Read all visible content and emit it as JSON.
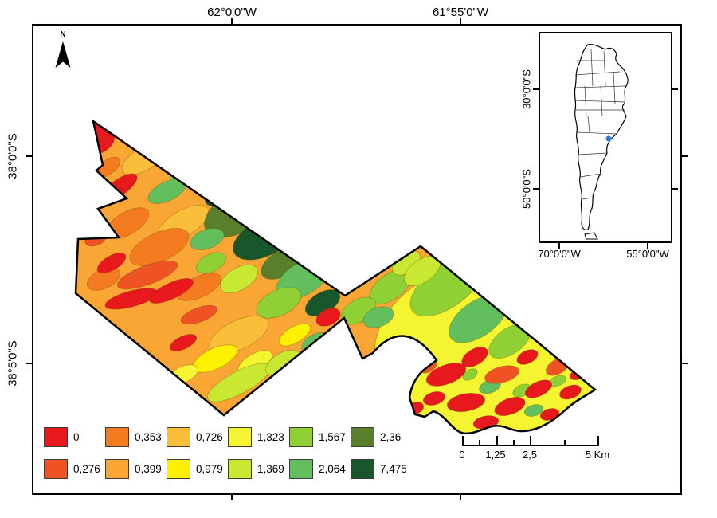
{
  "frame": {
    "top_labels": [
      {
        "text": "62°0'0\"W"
      },
      {
        "text": "61°55'0\"W"
      }
    ],
    "left_labels": [
      {
        "text": "38°0'0\"S"
      },
      {
        "text": "38°5'0\"S"
      }
    ]
  },
  "north_arrow": {
    "label": "N"
  },
  "inset": {
    "left_labels": [
      "30°0'0\"S",
      "50°0'0\"S"
    ],
    "bottom_labels": [
      "70°0'0\"W",
      "55°0'0\"W"
    ],
    "marker_color": "#2a7fd4"
  },
  "legend": {
    "rows": [
      [
        {
          "value": "0",
          "color": "#e8191d"
        },
        {
          "value": "0,353",
          "color": "#f47b20"
        },
        {
          "value": "0,726",
          "color": "#fbbe3a"
        },
        {
          "value": "1,323",
          "color": "#f4f431"
        },
        {
          "value": "1,567",
          "color": "#8fd135"
        },
        {
          "value": "2,36",
          "color": "#5a7f2b"
        }
      ],
      [
        {
          "value": "0,276",
          "color": "#f05323"
        },
        {
          "value": "0,399",
          "color": "#faa634"
        },
        {
          "value": "0,979",
          "color": "#fdf100"
        },
        {
          "value": "1,369",
          "color": "#c9e831"
        },
        {
          "value": "2,064",
          "color": "#63bf5e"
        },
        {
          "value": "7,475",
          "color": "#17572b"
        }
      ]
    ]
  },
  "scalebar": {
    "labels": [
      "0",
      "1,25",
      "2,5",
      "5 Km"
    ]
  }
}
